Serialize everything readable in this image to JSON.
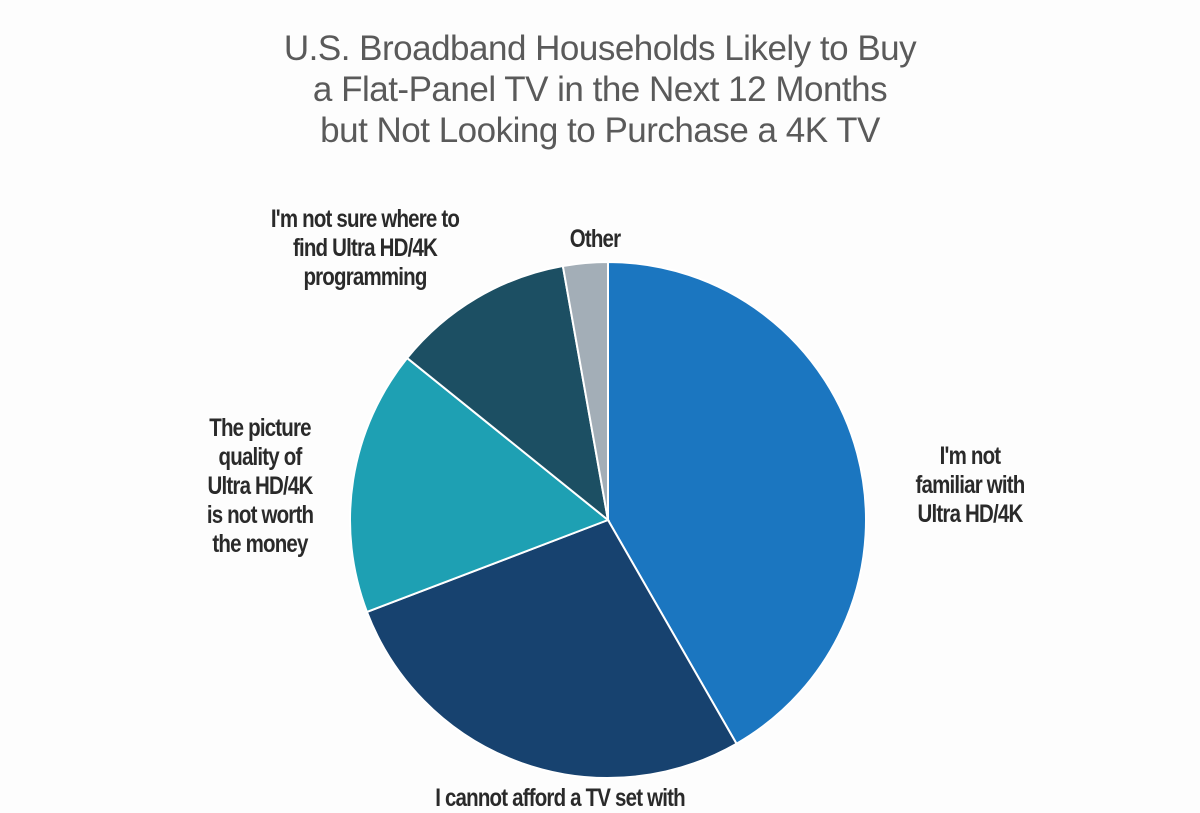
{
  "chart_data": {
    "type": "pie",
    "title_lines": [
      "U.S. Broadband Households Likely to Buy",
      "a Flat-Panel TV in the Next 12 Months",
      "but Not Looking to Purchase a 4K TV"
    ],
    "start": "12 o'clock, clockwise",
    "slices": [
      {
        "label": "I'm not familiar with Ultra HD/4K",
        "label_lines": [
          "I'm not",
          "familiar with",
          "Ultra HD/4K"
        ],
        "value": 41.7,
        "color": "#1b76c0"
      },
      {
        "label": "I cannot afford a TV set with",
        "label_lines": [
          "I cannot afford a TV set with"
        ],
        "value": 27.5,
        "color": "#17426f"
      },
      {
        "label": "The picture quality of Ultra HD/4K is not worth the money",
        "label_lines": [
          "The picture",
          "quality of",
          "Ultra HD/4K",
          "is not worth",
          "the money"
        ],
        "value": 16.6,
        "color": "#1ea0b3"
      },
      {
        "label": "I'm not sure where to find Ultra HD/4K programming",
        "label_lines": [
          "I'm not sure where to",
          "find Ultra HD/4K",
          "programming"
        ],
        "value": 11.4,
        "color": "#1c4f63"
      },
      {
        "label": "Other",
        "label_lines": [
          "Other"
        ],
        "value": 2.8,
        "color": "#a3aeb7"
      }
    ]
  }
}
